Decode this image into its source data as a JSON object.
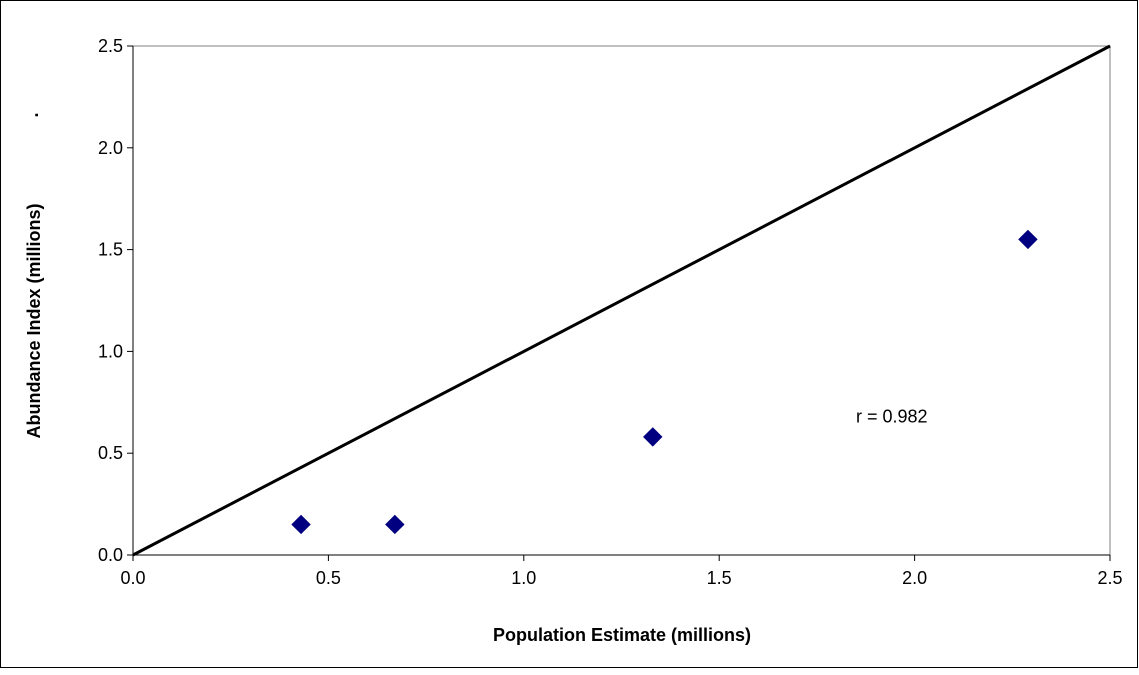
{
  "chart_data": {
    "type": "scatter",
    "title": "",
    "xlabel": "Population Estimate (millions)",
    "ylabel": "Abundance Index (millions)",
    "xlim": [
      0,
      2.5
    ],
    "ylim": [
      0,
      2.5
    ],
    "x_ticks": [
      "0.0",
      "0.5",
      "1.0",
      "1.5",
      "2.0",
      "2.5"
    ],
    "y_ticks": [
      "0.0",
      "0.5",
      "1.0",
      "1.5",
      "2.0",
      "2.5"
    ],
    "grid": false,
    "legend": "none",
    "series": [
      {
        "marker": "diamond",
        "color": "#000080",
        "points": [
          {
            "x": 0.43,
            "y": 0.15
          },
          {
            "x": 0.67,
            "y": 0.15
          },
          {
            "x": 1.33,
            "y": 0.58
          },
          {
            "x": 2.29,
            "y": 1.55
          }
        ]
      }
    ],
    "reference_line": {
      "from": [
        0,
        0
      ],
      "to": [
        2.5,
        2.5
      ],
      "color": "#000000"
    },
    "annotations": [
      {
        "text": "r = 0.982",
        "x": 1.85,
        "y": 0.65
      }
    ],
    "stray_mark": "."
  }
}
